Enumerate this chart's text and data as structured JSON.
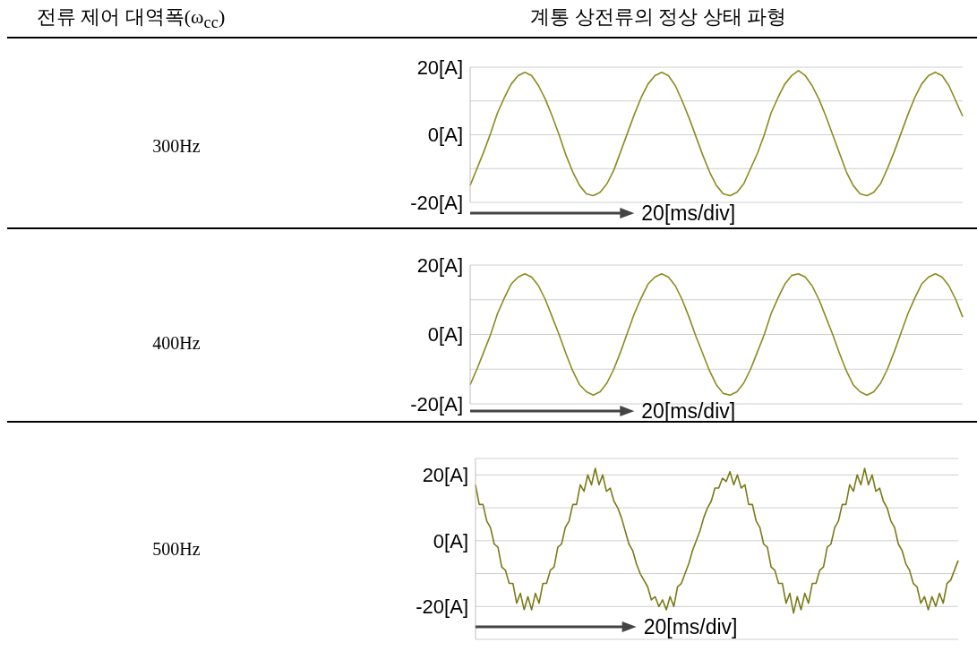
{
  "chart_data": [
    {
      "type": "other",
      "annotations": [
        "전류 제어 대역폭(ω$_{cc}$)",
        "계통 상전류의 정상 상태 파형"
      ]
    },
    {
      "type": "line",
      "annotations": [
        "300Hz"
      ],
      "xlabel": "20[ms/div]",
      "grid": "y",
      "tick_labels": "y",
      "categories": [
        null,
        null,
        null,
        null,
        null,
        null,
        null,
        null,
        null,
        null,
        null,
        null,
        null,
        null,
        null,
        null,
        null,
        null,
        null,
        null,
        null,
        null,
        null,
        null,
        null,
        null,
        null,
        null,
        null,
        null,
        null,
        null,
        null,
        null,
        null,
        null,
        null,
        null,
        null,
        null,
        null,
        null,
        null,
        null,
        null,
        null,
        null,
        null,
        null,
        null,
        null,
        null,
        null,
        null,
        null,
        null,
        null,
        null,
        null,
        null,
        null,
        null,
        null,
        null,
        null,
        null,
        null,
        null,
        null,
        null,
        null,
        null,
        null
      ],
      "series": [
        {
          "color": "#8b8b1f",
          "values": [
            -15,
            -10,
            -5,
            0.5,
            6.5,
            11,
            15,
            17.5,
            18.5,
            17.5,
            14.5,
            10.5,
            5.5,
            0,
            -6,
            -11,
            -15,
            -17.5,
            -18,
            -17,
            -14.5,
            -10.5,
            -5,
            0.5,
            6,
            11,
            15,
            17.5,
            18.5,
            17.5,
            14.5,
            10,
            5,
            -0.5,
            -6,
            -11,
            -15,
            -17.5,
            -18,
            -17,
            -14.5,
            -10,
            -5.5,
            0,
            6.5,
            11,
            15,
            17.5,
            19,
            17.5,
            14.5,
            10.5,
            5.5,
            0,
            -5.5,
            -11,
            -15,
            -17.5,
            -18,
            -17,
            -14.5,
            -10,
            -5,
            0.5,
            6,
            11,
            15,
            17.5,
            18.5,
            17.5,
            14.5,
            10,
            5.5
          ]
        }
      ],
      "ylim": [
        -20,
        20
      ],
      "yticks": [
        {
          "value": 20,
          "label": "20[A]"
        },
        {
          "value": 10,
          "label": null
        },
        {
          "value": 0,
          "label": "0[A]"
        },
        {
          "value": -10,
          "label": null
        },
        {
          "value": -20,
          "label": "-20[A]"
        }
      ]
    },
    {
      "type": "line",
      "annotations": [
        "400Hz"
      ],
      "xlabel": "20[ms/div]",
      "grid": "y",
      "tick_labels": "y",
      "categories": [
        null,
        null,
        null,
        null,
        null,
        null,
        null,
        null,
        null,
        null,
        null,
        null,
        null,
        null,
        null,
        null,
        null,
        null,
        null,
        null,
        null,
        null,
        null,
        null,
        null,
        null,
        null,
        null,
        null,
        null,
        null,
        null,
        null,
        null,
        null,
        null,
        null,
        null,
        null,
        null,
        null,
        null,
        null,
        null,
        null,
        null,
        null,
        null,
        null,
        null,
        null,
        null,
        null,
        null,
        null,
        null,
        null,
        null,
        null,
        null,
        null,
        null,
        null,
        null,
        null,
        null,
        null,
        null,
        null,
        null,
        null,
        null,
        null
      ],
      "series": [
        {
          "color": "#8b8b1f",
          "values": [
            -14.5,
            -10,
            -5,
            0,
            6,
            10.5,
            14.5,
            16.5,
            17.5,
            16.5,
            14,
            10,
            5,
            0,
            -5.5,
            -10.5,
            -14.5,
            -16.5,
            -17.5,
            -16.5,
            -14,
            -10,
            -5,
            0.5,
            6,
            10.5,
            14.5,
            16.5,
            17.5,
            16.5,
            14,
            10,
            5,
            -0.5,
            -5.5,
            -10.5,
            -14.5,
            -17,
            -17.5,
            -16.5,
            -14,
            -10,
            -5,
            0,
            6,
            10.5,
            14.5,
            17,
            17.5,
            16.5,
            14,
            10,
            5,
            0,
            -5.5,
            -10.5,
            -14.5,
            -16.5,
            -17.5,
            -16.5,
            -14,
            -10,
            -5,
            0.5,
            6,
            10.5,
            14.5,
            16.5,
            17.5,
            16.5,
            14,
            10,
            5
          ]
        }
      ],
      "ylim": [
        -20,
        20
      ],
      "yticks": [
        {
          "value": 20,
          "label": "20[A]"
        },
        {
          "value": 10,
          "label": null
        },
        {
          "value": 0,
          "label": "0[A]"
        },
        {
          "value": -10,
          "label": null
        },
        {
          "value": -20,
          "label": "-20[A]"
        }
      ]
    },
    {
      "type": "line",
      "annotations": [
        "500Hz"
      ],
      "xlabel": "20[ms/div]",
      "grid": "y",
      "tick_labels": "y",
      "categories": [
        null,
        null,
        null,
        null,
        null,
        null,
        null,
        null,
        null,
        null,
        null,
        null,
        null,
        null,
        null,
        null,
        null,
        null,
        null,
        null,
        null,
        null,
        null,
        null,
        null,
        null,
        null,
        null,
        null,
        null,
        null,
        null,
        null,
        null,
        null,
        null,
        null,
        null,
        null,
        null,
        null,
        null,
        null,
        null,
        null,
        null,
        null,
        null,
        null,
        null,
        null,
        null,
        null,
        null,
        null,
        null,
        null,
        null,
        null,
        null,
        null,
        null,
        null,
        null,
        null,
        null,
        null,
        null,
        null,
        null,
        null,
        null,
        null,
        null,
        null,
        null,
        null,
        null,
        null,
        null,
        null,
        null,
        null,
        null,
        null,
        null,
        null,
        null,
        null,
        null,
        null,
        null,
        null,
        null,
        null,
        null,
        null,
        null,
        null,
        null,
        null,
        null,
        null,
        null,
        null,
        null,
        null,
        null,
        null,
        null,
        null,
        null,
        null,
        null,
        null,
        null,
        null,
        null,
        null,
        null,
        null,
        null,
        null,
        null,
        null,
        null,
        null,
        null,
        null,
        null
      ],
      "series": [
        {
          "color": "#7a7a18",
          "values": [
            17,
            11,
            11,
            6,
            4,
            -1,
            -2,
            -8,
            -9,
            -13,
            -13,
            -19,
            -16,
            -21,
            -17,
            -21,
            -16,
            -19,
            -13,
            -13,
            -9,
            -8,
            -2,
            -1,
            4,
            6,
            11,
            11,
            17,
            15,
            20,
            17,
            22,
            17,
            20,
            15,
            16,
            12,
            10,
            7,
            3,
            -1,
            -3,
            -7,
            -10,
            -12,
            -14,
            -18,
            -17,
            -20,
            -18,
            -21,
            -17,
            -20,
            -14,
            -13,
            -10,
            -7,
            -3,
            0,
            3,
            7,
            10,
            12,
            16,
            16,
            19,
            18,
            21,
            17,
            20,
            16,
            17,
            11,
            11,
            6,
            4,
            -1,
            -2,
            -8,
            -9,
            -13,
            -13,
            -19,
            -16,
            -22,
            -17,
            -21,
            -16,
            -19,
            -13,
            -13,
            -9,
            -8,
            -2,
            -1,
            4,
            6,
            11,
            11,
            17,
            15,
            20,
            17,
            22,
            17,
            20,
            15,
            16,
            12,
            10,
            6,
            4,
            -1,
            -3,
            -7,
            -9,
            -13,
            -14,
            -19,
            -17,
            -21,
            -17,
            -20,
            -16,
            -19,
            -13,
            -12,
            -9,
            -6
          ]
        }
      ],
      "ylim": [
        -30,
        25
      ],
      "yticks": [
        {
          "value": 20,
          "label": "20[A]"
        },
        {
          "value": 10,
          "label": null
        },
        {
          "value": 0,
          "label": "0[A]"
        },
        {
          "value": -10,
          "label": null
        },
        {
          "value": -20,
          "label": "-20[A]"
        },
        {
          "value": -30,
          "label": null
        }
      ]
    }
  ]
}
